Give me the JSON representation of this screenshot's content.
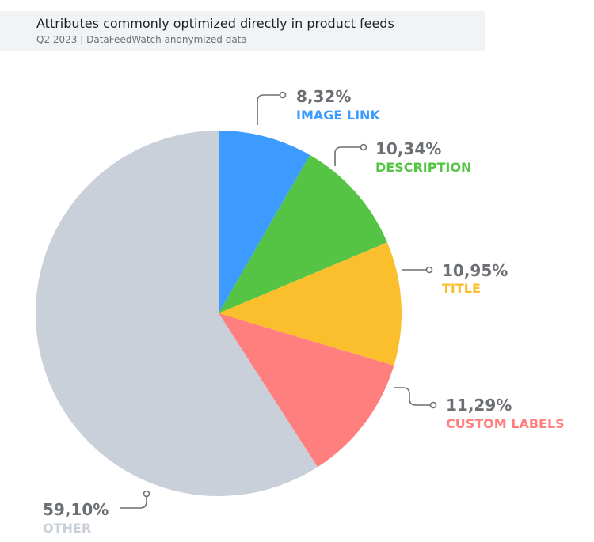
{
  "header": {
    "title": "Attributes commonly optimized directly in product feeds",
    "subtitle": "Q2 2023 | DataFeedWatch anonymized data"
  },
  "chart_data": {
    "type": "pie",
    "title": "Attributes commonly optimized directly in product feeds",
    "subtitle": "Q2 2023 | DataFeedWatch anonymized data",
    "start": "12 o'clock, clockwise",
    "slices": [
      {
        "label": "IMAGE LINK",
        "value": 8.32,
        "value_label": "8,32%",
        "color": "#3d9bff"
      },
      {
        "label": "DESCRIPTION",
        "value": 10.34,
        "value_label": "10,34%",
        "color": "#55c444"
      },
      {
        "label": "TITLE",
        "value": 10.95,
        "value_label": "10,95%",
        "color": "#fbbf2e"
      },
      {
        "label": "CUSTOM LABELS",
        "value": 11.29,
        "value_label": "11,29%",
        "color": "#ff7f7f"
      },
      {
        "label": "OTHER",
        "value": 59.1,
        "value_label": "59,10%",
        "color": "#c9d0d9"
      }
    ]
  }
}
